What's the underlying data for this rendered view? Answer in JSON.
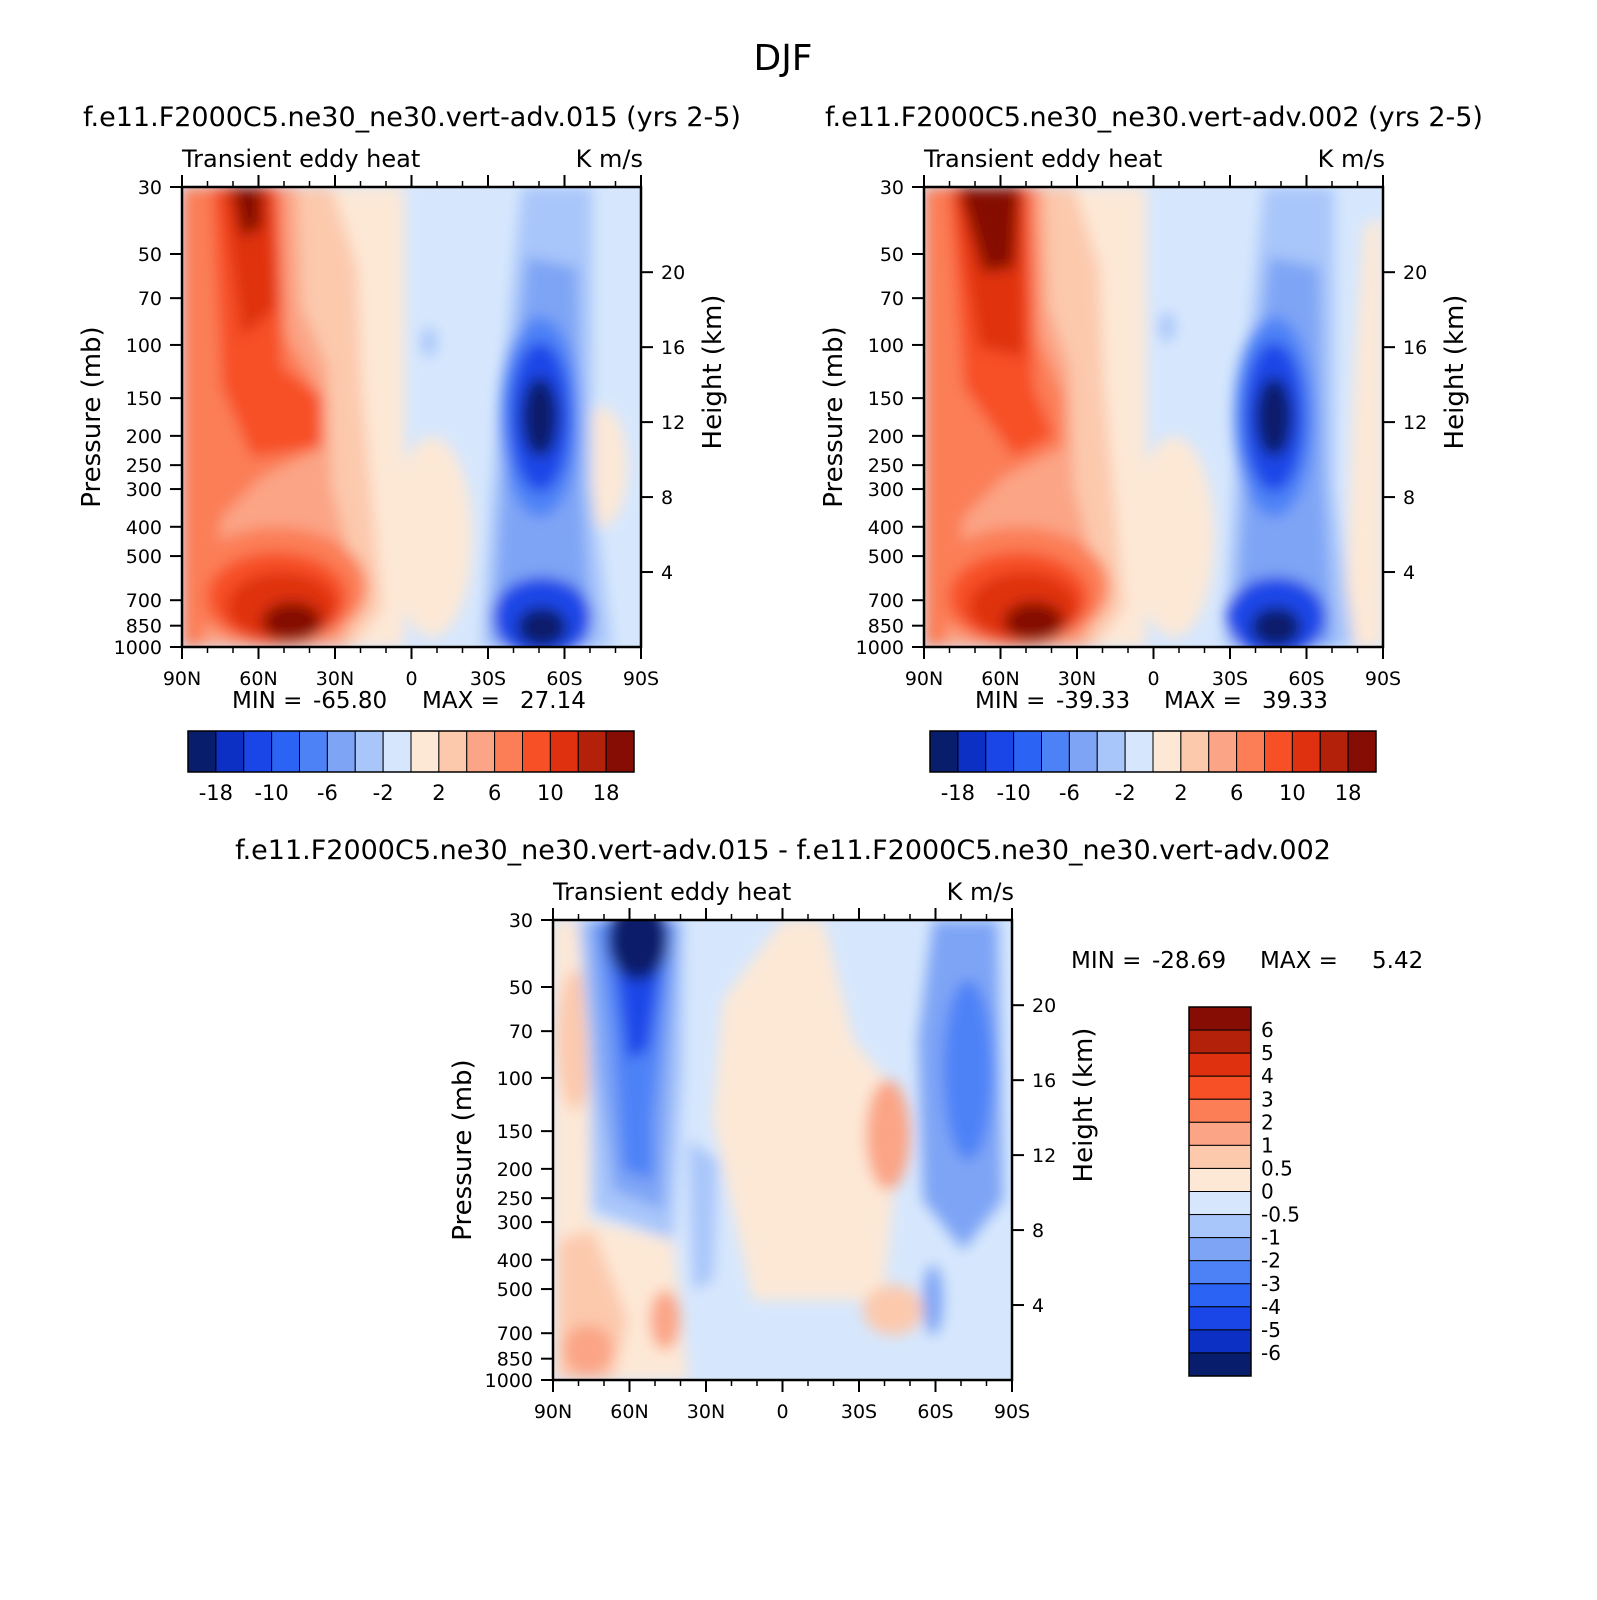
{
  "figure_title": "DJF",
  "chart_data": [
    {
      "type": "heatmap",
      "title": "f.e11.F2000C5.ne30_ne30.vert-adv.015 (yrs 2-5)",
      "left_string": "Transient eddy heat",
      "right_string": "K m/s",
      "ylabel": "Pressure (mb)",
      "ylabel_right": "Height (km)",
      "x_ticks": [
        "90N",
        "60N",
        "30N",
        "0",
        "30S",
        "60S",
        "90S"
      ],
      "y_ticks": [
        "30",
        "50",
        "70",
        "100",
        "150",
        "200",
        "250",
        "300",
        "400",
        "500",
        "700",
        "850",
        "1000"
      ],
      "y_right_ticks": [
        "20",
        "16",
        "12",
        "8",
        "4"
      ],
      "min_label": "MIN =",
      "min_value": "-65.80",
      "max_label": "MAX =",
      "max_value": "27.14",
      "levels": [
        -18,
        -14,
        -10,
        -8,
        -6,
        -4,
        -2,
        0,
        2,
        4,
        6,
        8,
        10,
        14,
        18
      ],
      "colorbar_labels": [
        "-18",
        "-10",
        "-6",
        "-2",
        "2",
        "6",
        "10",
        "18"
      ],
      "colors": [
        "#081d6b",
        "#0c2fc4",
        "#1a46e8",
        "#2b63f5",
        "#4d82f7",
        "#7ea4f5",
        "#a9c6fa",
        "#d6e7fd",
        "#fde8d6",
        "#fcc9ad",
        "#fba486",
        "#fb7e57",
        "#f74f26",
        "#df300f",
        "#b3210b",
        "#850d04"
      ]
    },
    {
      "type": "heatmap",
      "title": "f.e11.F2000C5.ne30_ne30.vert-adv.002 (yrs 2-5)",
      "left_string": "Transient eddy heat",
      "right_string": "K m/s",
      "ylabel": "Pressure (mb)",
      "ylabel_right": "Height (km)",
      "x_ticks": [
        "90N",
        "60N",
        "30N",
        "0",
        "30S",
        "60S",
        "90S"
      ],
      "y_ticks": [
        "30",
        "50",
        "70",
        "100",
        "150",
        "200",
        "250",
        "300",
        "400",
        "500",
        "700",
        "850",
        "1000"
      ],
      "y_right_ticks": [
        "20",
        "16",
        "12",
        "8",
        "4"
      ],
      "min_label": "MIN =",
      "min_value": "-39.33",
      "max_label": "MAX =",
      "max_value": "39.33",
      "levels": [
        -18,
        -14,
        -10,
        -8,
        -6,
        -4,
        -2,
        0,
        2,
        4,
        6,
        8,
        10,
        14,
        18
      ],
      "colorbar_labels": [
        "-18",
        "-10",
        "-6",
        "-2",
        "2",
        "6",
        "10",
        "18"
      ],
      "colors": [
        "#081d6b",
        "#0c2fc4",
        "#1a46e8",
        "#2b63f5",
        "#4d82f7",
        "#7ea4f5",
        "#a9c6fa",
        "#d6e7fd",
        "#fde8d6",
        "#fcc9ad",
        "#fba486",
        "#fb7e57",
        "#f74f26",
        "#df300f",
        "#b3210b",
        "#850d04"
      ]
    },
    {
      "type": "heatmap",
      "title": "f.e11.F2000C5.ne30_ne30.vert-adv.015 - f.e11.F2000C5.ne30_ne30.vert-adv.002",
      "left_string": "Transient eddy heat",
      "right_string": "K m/s",
      "ylabel": "Pressure (mb)",
      "ylabel_right": "Height (km)",
      "x_ticks": [
        "90N",
        "60N",
        "30N",
        "0",
        "30S",
        "60S",
        "90S"
      ],
      "y_ticks": [
        "30",
        "50",
        "70",
        "100",
        "150",
        "200",
        "250",
        "300",
        "400",
        "500",
        "700",
        "850",
        "1000"
      ],
      "y_right_ticks": [
        "20",
        "16",
        "12",
        "8",
        "4"
      ],
      "min_label": "MIN =",
      "min_value": "-28.69",
      "max_label": "MAX =",
      "max_value": "5.42",
      "levels": [
        6,
        5,
        4,
        3,
        2,
        1,
        0.5,
        0,
        -0.5,
        -1,
        -2,
        -3,
        -4,
        -5,
        -6
      ],
      "colorbar_labels": [
        "6",
        "5",
        "4",
        "3",
        "2",
        "1",
        "0.5",
        "0",
        "-0.5",
        "-1",
        "-2",
        "-3",
        "-4",
        "-5",
        "-6"
      ],
      "colors": [
        "#850d04",
        "#b3210b",
        "#df300f",
        "#f74f26",
        "#fb7e57",
        "#fba486",
        "#fcc9ad",
        "#fde8d6",
        "#d6e7fd",
        "#a9c6fa",
        "#7ea4f5",
        "#4d82f7",
        "#2b63f5",
        "#1a46e8",
        "#0c2fc4",
        "#081d6b"
      ]
    }
  ]
}
